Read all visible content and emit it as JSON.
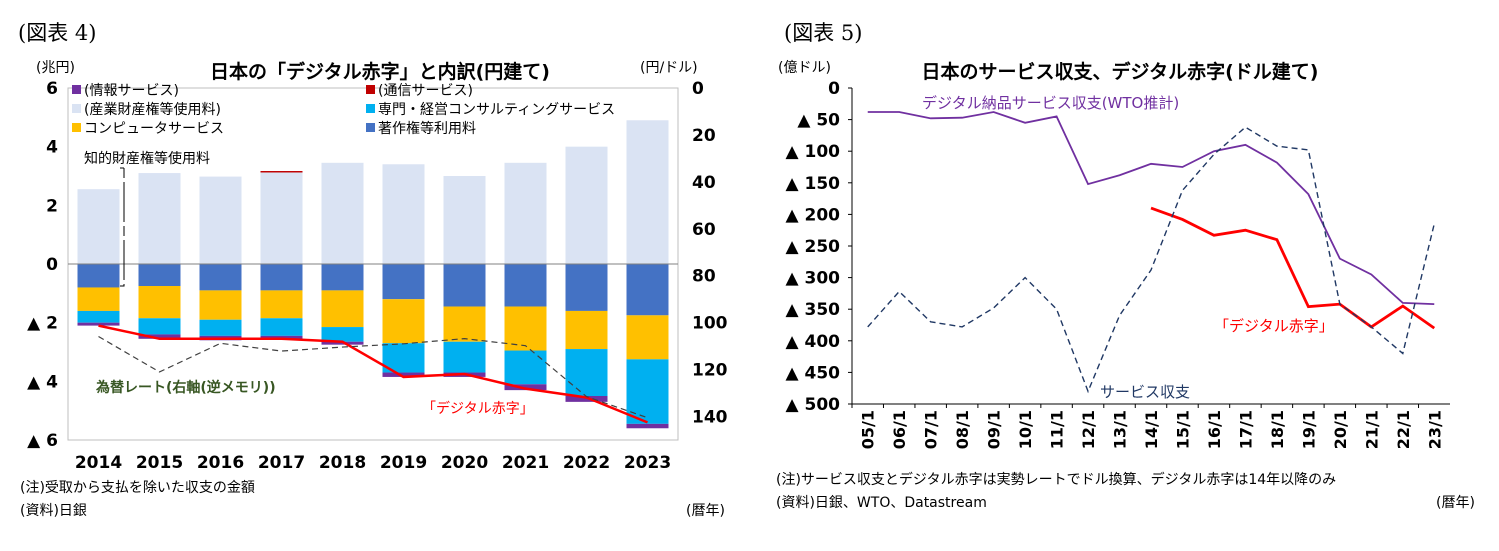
{
  "left": {
    "figure_label": "(図表 4)",
    "unit_left": "(兆円)",
    "unit_right": "(円/ドル)",
    "note": "(注)受取から支払を除いた収支の金額",
    "source": "(資料)日銀",
    "x_unit": "(暦年)",
    "annotation_ip": "知的財産権等使用料",
    "annotation_fx": "為替レート(右軸(逆メモリ))",
    "annotation_digital": "「デジタル赤字」",
    "legend": [
      {
        "label": "(情報サービス)",
        "color": "#7030a0"
      },
      {
        "label": "(通信サービス)",
        "color": "#c00000"
      },
      {
        "label": "(産業財産権等使用料)",
        "color": "#dae3f3"
      },
      {
        "label": "専門・経営コンサルティングサービス",
        "color": "#00b0f0"
      },
      {
        "label": "コンピュータサービス",
        "color": "#ffc000"
      },
      {
        "label": "著作権等利用料",
        "color": "#4472c4"
      }
    ],
    "y_ticks_left": [
      "6",
      "4",
      "2",
      "0",
      "▲ 2",
      "▲ 4",
      "▲ 6"
    ],
    "y_ticks_right": [
      "0",
      "20",
      "40",
      "60",
      "80",
      "100",
      "120",
      "140"
    ]
  },
  "right": {
    "figure_label": "(図表 5)",
    "unit_left": "(億ドル)",
    "note": "(注)サービス収支とデジタル赤字は実勢レートでドル換算、デジタル赤字は14年以降のみ",
    "source": "(資料)日銀、WTO、Datastream",
    "x_unit": "(暦年)",
    "label_wto": "デジタル納品サービス収支(WTO推計)",
    "label_digital": "「デジタル赤字」",
    "label_service": "サービス収支",
    "y_ticks": [
      "0",
      "▲ 50",
      "▲ 100",
      "▲ 150",
      "▲ 200",
      "▲ 250",
      "▲ 300",
      "▲ 350",
      "▲ 400",
      "▲ 450",
      "▲ 500"
    ]
  },
  "chart_data": [
    {
      "type": "bar",
      "title": "日本の「デジタル赤字」と内訳(円建て)",
      "categories": [
        "2014",
        "2015",
        "2016",
        "2017",
        "2018",
        "2019",
        "2020",
        "2021",
        "2022",
        "2023"
      ],
      "ylabel": "(兆円)",
      "ylim": [
        -6,
        6
      ],
      "y2label": "(円/ドル)",
      "y2lim": [
        0,
        150
      ],
      "y2_inverted": true,
      "stacked": true,
      "series": [
        {
          "name": "(産業財産権等使用料)",
          "color": "#dae3f3",
          "values": [
            2.55,
            3.1,
            2.98,
            3.12,
            3.45,
            3.4,
            3.0,
            3.45,
            4.0,
            4.9
          ]
        },
        {
          "name": "(通信サービス)",
          "color": "#c00000",
          "values": [
            0.0,
            0.0,
            0.0,
            0.05,
            0.0,
            0.0,
            0.0,
            0.0,
            0.0,
            0.0
          ]
        },
        {
          "name": "著作権等利用料",
          "color": "#4472c4",
          "values": [
            -0.8,
            -0.75,
            -0.9,
            -0.9,
            -0.9,
            -1.2,
            -1.45,
            -1.45,
            -1.6,
            -1.75
          ]
        },
        {
          "name": "コンピュータサービス",
          "color": "#ffc000",
          "values": [
            -0.8,
            -1.1,
            -1.0,
            -0.95,
            -1.25,
            -1.5,
            -1.2,
            -1.5,
            -1.3,
            -1.5
          ]
        },
        {
          "name": "専門・経営コンサルティングサービス",
          "color": "#00b0f0",
          "values": [
            -0.4,
            -0.55,
            -0.55,
            -0.6,
            -0.5,
            -1.0,
            -1.05,
            -1.15,
            -1.6,
            -2.2
          ]
        },
        {
          "name": "(情報サービス)",
          "color": "#7030a0",
          "values": [
            -0.1,
            -0.15,
            -0.15,
            -0.1,
            -0.1,
            -0.15,
            -0.15,
            -0.2,
            -0.2,
            -0.15
          ]
        }
      ],
      "line_series": [
        {
          "name": "「デジタル赤字」",
          "axis": "left",
          "color": "#ff0000",
          "style": "solid",
          "values": [
            -2.1,
            -2.55,
            -2.55,
            -2.55,
            -2.65,
            -3.85,
            -3.75,
            -4.25,
            -4.55,
            -5.4
          ]
        },
        {
          "name": "為替レート(右軸(逆メモリ))",
          "axis": "right",
          "color": "#404040",
          "style": "dashed",
          "values": [
            105.9,
            121.0,
            108.8,
            112.1,
            110.4,
            109.0,
            106.8,
            109.8,
            131.5,
            140.5
          ]
        }
      ],
      "bracket_note": "知的財産権等使用料"
    },
    {
      "type": "line",
      "title": "日本のサービス収支、デジタル赤字(ドル建て)",
      "x": [
        "05/1",
        "06/1",
        "07/1",
        "08/1",
        "09/1",
        "10/1",
        "11/1",
        "12/1",
        "13/1",
        "14/1",
        "15/1",
        "16/1",
        "17/1",
        "18/1",
        "19/1",
        "20/1",
        "21/1",
        "22/1",
        "23/1"
      ],
      "ylabel": "(億ドル)",
      "ylim": [
        -500,
        0
      ],
      "series": [
        {
          "name": "デジタル納品サービス収支(WTO推計)",
          "color": "#7030a0",
          "style": "solid",
          "values": [
            -38,
            -38,
            -48,
            -47,
            -38,
            -55,
            -45,
            -152,
            -138,
            -120,
            -125,
            -100,
            -90,
            -118,
            -168,
            -270,
            -295,
            -340,
            -342
          ]
        },
        {
          "name": "「デジタル赤字」",
          "color": "#ff0000",
          "style": "solid",
          "values": [
            null,
            null,
            null,
            null,
            null,
            null,
            null,
            null,
            null,
            -190,
            -208,
            -233,
            -225,
            -240,
            -346,
            -342,
            -378,
            -345,
            -380
          ]
        },
        {
          "name": "サービス収支",
          "color": "#203864",
          "style": "dashed",
          "values": [
            -378,
            -322,
            -370,
            -378,
            -348,
            -300,
            -350,
            -480,
            -360,
            -288,
            -162,
            -105,
            -62,
            -92,
            -98,
            -342,
            -378,
            -420,
            -215
          ]
        }
      ]
    }
  ]
}
